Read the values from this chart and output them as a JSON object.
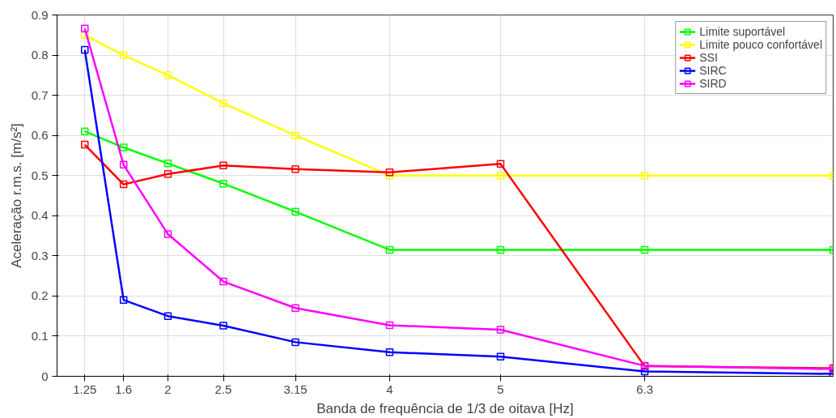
{
  "chart_data": {
    "type": "line",
    "xlabel": "Banda de frequência de 1/3 de oitava [Hz]",
    "ylabel": "Aceleração r.m.s. [m/s²]",
    "x": [
      1.25,
      1.6,
      2,
      2.5,
      3.15,
      4,
      5,
      6.3,
      8
    ],
    "xlim": [
      1,
      8
    ],
    "xticks": [
      1.25,
      1.6,
      2,
      2.5,
      3.15,
      4,
      5,
      6.3
    ],
    "ylim": [
      0,
      0.9
    ],
    "yticks": [
      0,
      0.1,
      0.2,
      0.3,
      0.4,
      0.5,
      0.6,
      0.7,
      0.8,
      0.9
    ],
    "grid": true,
    "legend": "top right",
    "marker": "square",
    "line_style": "solid",
    "series": [
      {
        "name": "Limite suportável",
        "color": "#00ff00",
        "values": [
          0.61,
          0.57,
          0.53,
          0.48,
          0.41,
          0.315,
          0.315,
          0.315,
          0.315
        ]
      },
      {
        "name": "Limite pouco confortável",
        "color": "#ffff00",
        "values": [
          0.85,
          0.8,
          0.75,
          0.68,
          0.6,
          0.5,
          0.5,
          0.5,
          0.5
        ]
      },
      {
        "name": "SSI",
        "color": "#ff0000",
        "values": [
          0.577,
          0.478,
          0.504,
          0.525,
          0.516,
          0.508,
          0.529,
          0.025,
          0.02
        ]
      },
      {
        "name": "SIRC",
        "color": "#0000ff",
        "values": [
          0.813,
          0.19,
          0.15,
          0.126,
          0.085,
          0.06,
          0.049,
          0.012,
          0.006
        ]
      },
      {
        "name": "SIRD",
        "color": "#ff00ff",
        "values": [
          0.866,
          0.527,
          0.354,
          0.236,
          0.17,
          0.127,
          0.116,
          0.026,
          0.018
        ]
      }
    ]
  }
}
